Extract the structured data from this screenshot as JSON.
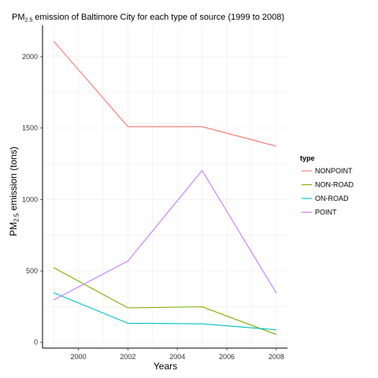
{
  "chart_data": {
    "type": "line",
    "title": {
      "prefix": "PM",
      "sub": "2.5",
      "suffix": " emission of Baltimore City for each type of source (1999 to 2008)"
    },
    "xlabel": "Years",
    "ylabel": {
      "prefix": "PM",
      "sub": "2.5",
      "suffix": " emission (tons)"
    },
    "x": [
      1999,
      2002,
      2005,
      2008
    ],
    "xticks": [
      2000,
      2002,
      2004,
      2006,
      2008
    ],
    "yticks": [
      0,
      500,
      1000,
      1500,
      2000
    ],
    "xlim": [
      1998.55,
      2008.45
    ],
    "ylim": [
      -40,
      2220
    ],
    "grid": true,
    "legend_title": "type",
    "legend_position": "right",
    "series": [
      {
        "name": "NONPOINT",
        "color": "#F8766D",
        "values": [
          2108,
          1510,
          1510,
          1373
        ]
      },
      {
        "name": "NON-ROAD",
        "color": "#7CAE00",
        "values": [
          523,
          241,
          249,
          55
        ]
      },
      {
        "name": "ON-ROAD",
        "color": "#00BFC4",
        "values": [
          347,
          134,
          130,
          88
        ]
      },
      {
        "name": "POINT",
        "color": "#C77CFF",
        "values": [
          297,
          569,
          1203,
          345
        ]
      }
    ]
  }
}
